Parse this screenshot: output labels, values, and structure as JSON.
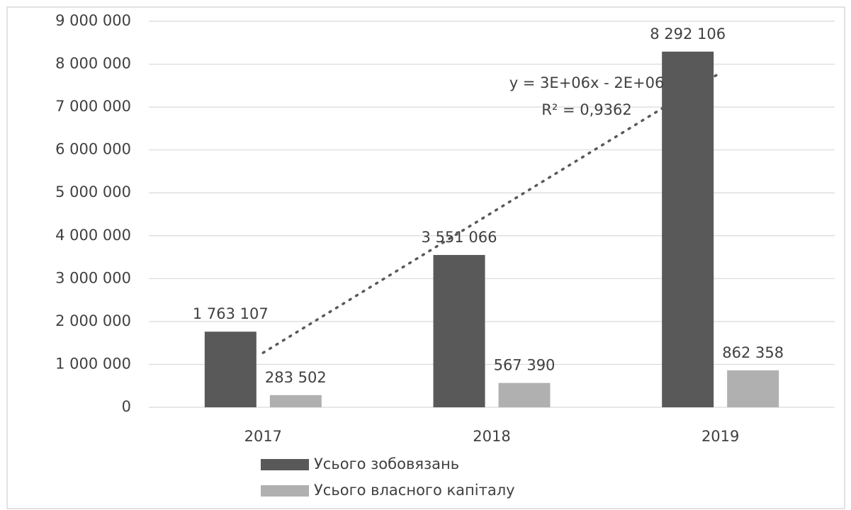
{
  "chart_data": {
    "type": "bar",
    "categories": [
      "2017",
      "2018",
      "2019"
    ],
    "series": [
      {
        "name": "Усього зобовязань",
        "color": "#595959",
        "values": [
          1763107,
          3551066,
          8292106
        ],
        "value_labels": [
          "1 763 107",
          "3 551 066",
          "8 292 106"
        ]
      },
      {
        "name": "Усього власного капіталу",
        "color": "#b0b0b0",
        "values": [
          283502,
          567390,
          862358
        ],
        "value_labels": [
          "283 502",
          "567 390",
          "862 358"
        ]
      }
    ],
    "ylim": [
      0,
      9000000
    ],
    "yticks": [
      {
        "value": 0,
        "label": "0"
      },
      {
        "value": 1000000,
        "label": "1 000 000"
      },
      {
        "value": 2000000,
        "label": "2 000 000"
      },
      {
        "value": 3000000,
        "label": "3 000 000"
      },
      {
        "value": 4000000,
        "label": "4 000 000"
      },
      {
        "value": 5000000,
        "label": "5 000 000"
      },
      {
        "value": 6000000,
        "label": "6 000 000"
      },
      {
        "value": 7000000,
        "label": "7 000 000"
      },
      {
        "value": 8000000,
        "label": "8 000 000"
      },
      {
        "value": 9000000,
        "label": "9 000 000"
      }
    ],
    "grid": true,
    "legend": "bottom",
    "trendline": {
      "equation": "y = 3E+06x - 2E+06",
      "r_squared": "R² = 0,9362"
    }
  }
}
